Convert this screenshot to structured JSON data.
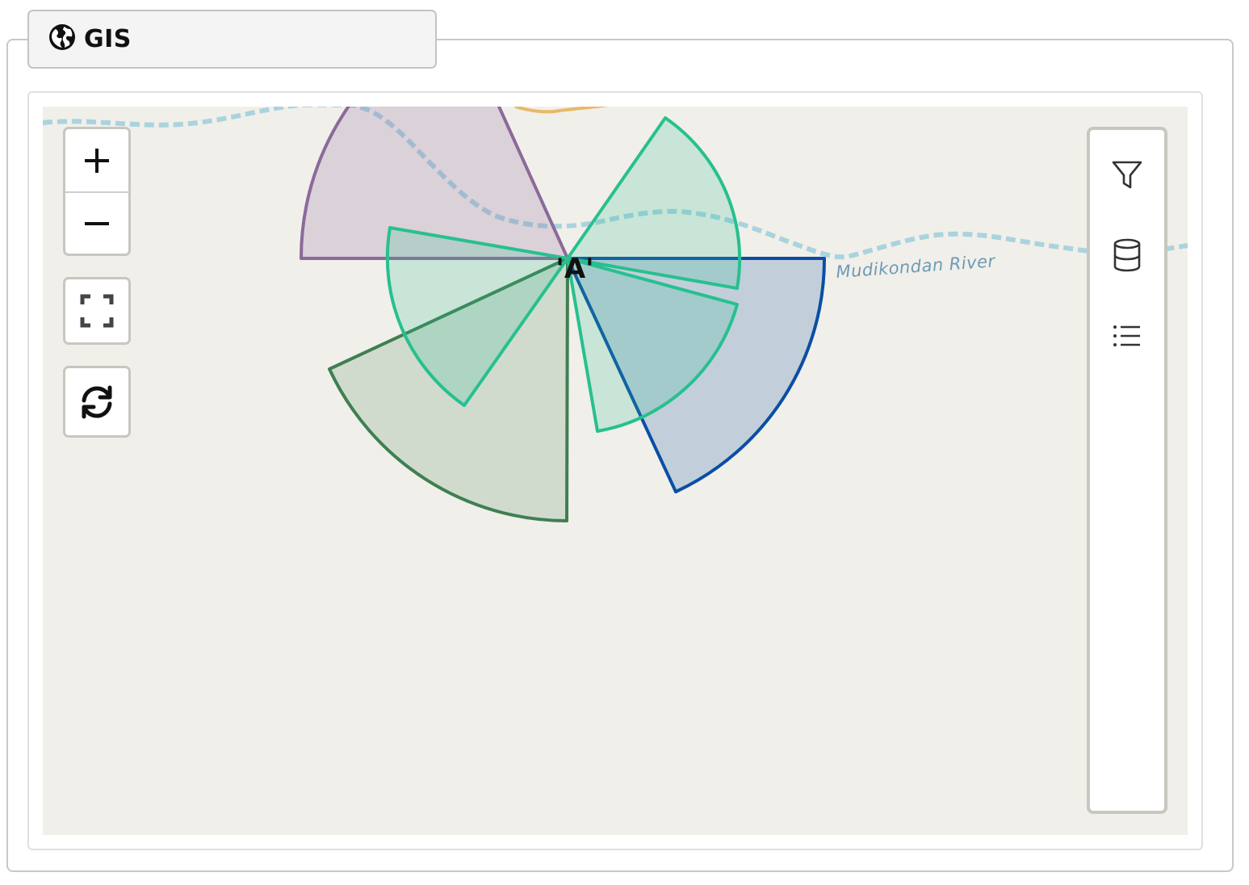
{
  "header": {
    "title": "GIS",
    "icon": "globe-icon"
  },
  "map": {
    "river_label": "Mudikondan River",
    "point_label": "'A'",
    "colors": {
      "land": "#f1efe9",
      "river": "#a9d3df",
      "road": "#e8b96a"
    },
    "sectors": [
      {
        "name": "purple-sector",
        "color": "#8b6a9a"
      },
      {
        "name": "teal-sector",
        "color": "#27c08f"
      },
      {
        "name": "blue-sector",
        "color": "#0a4ea5"
      },
      {
        "name": "green-sector",
        "color": "#3f7f52"
      }
    ]
  },
  "controls": {
    "zoom_in": "+",
    "zoom_out": "−",
    "fullscreen_icon": "fullscreen-icon",
    "refresh_icon": "refresh-icon"
  },
  "toolbar": {
    "items": [
      {
        "icon": "filter-icon"
      },
      {
        "icon": "database-icon"
      },
      {
        "icon": "list-icon"
      }
    ]
  }
}
